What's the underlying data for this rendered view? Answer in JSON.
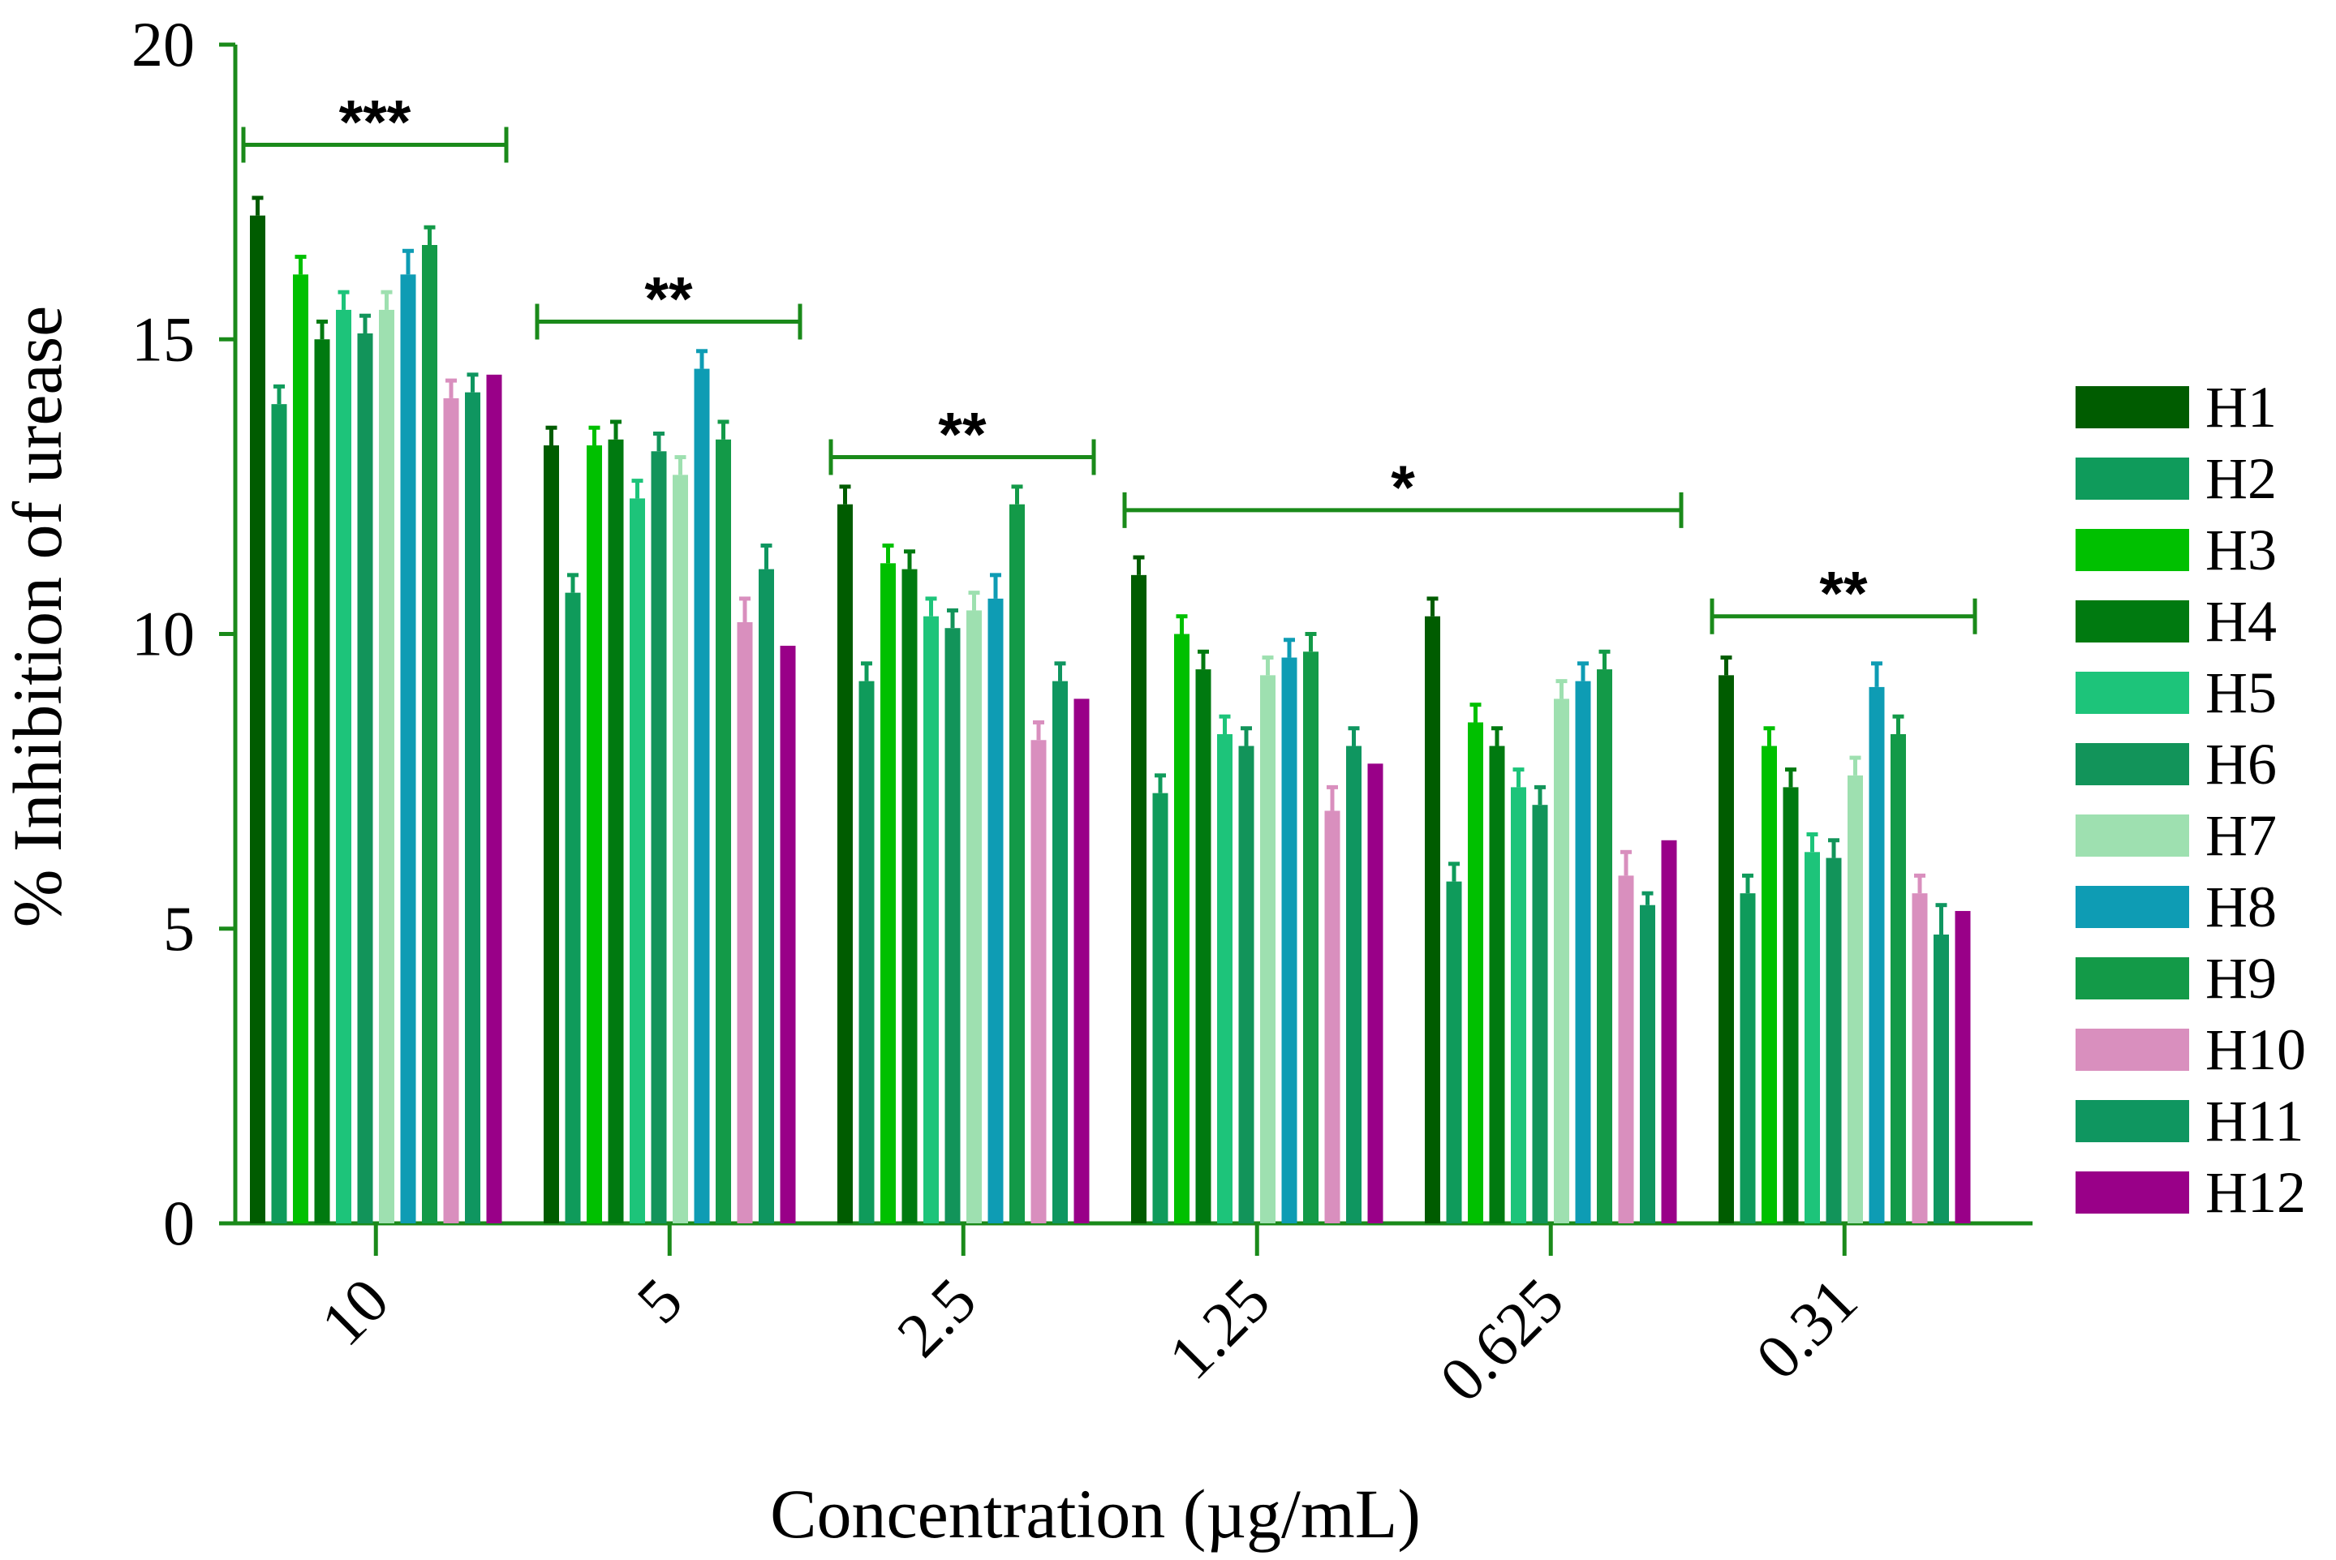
{
  "chart_data": {
    "type": "bar",
    "title": "",
    "xlabel": "Concentration (µg/mL)",
    "ylabel": "% Inhibition of urease",
    "ylim": [
      0,
      20
    ],
    "yticks": [
      "0",
      "5",
      "10",
      "15",
      "20"
    ],
    "categories": [
      "10",
      "5",
      "2.5",
      "1.25",
      "0.625",
      "0.31"
    ],
    "series": [
      {
        "name": "H1",
        "color": "#005c00",
        "values": [
          17.1,
          13.2,
          12.2,
          11.0,
          10.3,
          9.3
        ],
        "errors": [
          0.3,
          0.3,
          0.3,
          0.3,
          0.3,
          0.3
        ]
      },
      {
        "name": "H2",
        "color": "#0f9b5b",
        "values": [
          13.9,
          10.7,
          9.2,
          7.3,
          5.8,
          5.6
        ],
        "errors": [
          0.3,
          0.3,
          0.3,
          0.3,
          0.3,
          0.3
        ]
      },
      {
        "name": "H3",
        "color": "#00c000",
        "values": [
          16.1,
          13.2,
          11.2,
          10.0,
          8.5,
          8.1
        ],
        "errors": [
          0.3,
          0.3,
          0.3,
          0.3,
          0.3,
          0.3
        ]
      },
      {
        "name": "H4",
        "color": "#007a10",
        "values": [
          15.0,
          13.3,
          11.1,
          9.4,
          8.1,
          7.4
        ],
        "errors": [
          0.3,
          0.3,
          0.3,
          0.3,
          0.3,
          0.3
        ]
      },
      {
        "name": "H5",
        "color": "#1dc47a",
        "values": [
          15.5,
          12.3,
          10.3,
          8.3,
          7.4,
          6.3
        ],
        "errors": [
          0.3,
          0.3,
          0.3,
          0.3,
          0.3,
          0.3
        ]
      },
      {
        "name": "H6",
        "color": "#12945a",
        "values": [
          15.1,
          13.1,
          10.1,
          8.1,
          7.1,
          6.2
        ],
        "errors": [
          0.3,
          0.3,
          0.3,
          0.3,
          0.3,
          0.3
        ]
      },
      {
        "name": "H7",
        "color": "#9ee0b0",
        "values": [
          15.5,
          12.7,
          10.4,
          9.3,
          8.9,
          7.6
        ],
        "errors": [
          0.3,
          0.3,
          0.3,
          0.3,
          0.3,
          0.3
        ]
      },
      {
        "name": "H8",
        "color": "#0e9cb4",
        "values": [
          16.1,
          14.5,
          10.6,
          9.6,
          9.2,
          9.1
        ],
        "errors": [
          0.4,
          0.3,
          0.4,
          0.3,
          0.3,
          0.4
        ]
      },
      {
        "name": "H9",
        "color": "#139a48",
        "values": [
          16.6,
          13.3,
          12.2,
          9.7,
          9.4,
          8.3
        ],
        "errors": [
          0.3,
          0.3,
          0.3,
          0.3,
          0.3,
          0.3
        ]
      },
      {
        "name": "H10",
        "color": "#d98fbe",
        "values": [
          14.0,
          10.2,
          8.2,
          7.0,
          5.9,
          5.6
        ],
        "errors": [
          0.3,
          0.4,
          0.3,
          0.4,
          0.4,
          0.3
        ]
      },
      {
        "name": "H11",
        "color": "#0f9660",
        "values": [
          14.1,
          11.1,
          9.2,
          8.1,
          5.4,
          4.9
        ],
        "errors": [
          0.3,
          0.4,
          0.3,
          0.3,
          0.2,
          0.5
        ]
      },
      {
        "name": "H12",
        "color": "#990088",
        "values": [
          14.4,
          9.8,
          8.9,
          7.8,
          6.5,
          5.3
        ],
        "errors": [
          0,
          0,
          0,
          0,
          0,
          0
        ]
      }
    ],
    "significance": [
      {
        "label": "***",
        "from": 0,
        "to": 0,
        "y": 18.3
      },
      {
        "label": "**",
        "from": 1,
        "to": 1,
        "y": 15.3
      },
      {
        "label": "**",
        "from": 2,
        "to": 2,
        "y": 13.0
      },
      {
        "label": "*",
        "from": 3,
        "to": 4,
        "y": 12.1
      },
      {
        "label": "**",
        "from": 5,
        "to": 5,
        "y": 10.3
      }
    ],
    "legend_position": "right",
    "grid": false
  }
}
